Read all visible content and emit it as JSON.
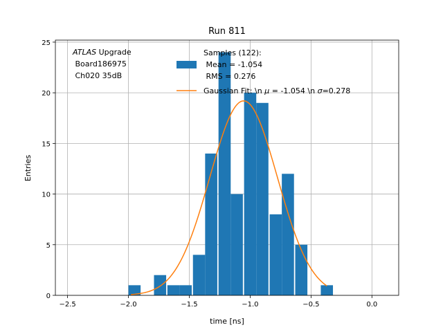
{
  "chart_data": {
    "type": "bar",
    "title": "Run 811",
    "xlabel": "time [ns]",
    "ylabel": "Entries",
    "xlim": [
      -2.6,
      0.22
    ],
    "ylim": [
      0,
      25.2
    ],
    "grid": true,
    "x_ticks": [
      -2.5,
      -2.0,
      -1.5,
      -1.0,
      -0.5,
      0.0
    ],
    "x_tick_labels": [
      "−2.5",
      "−2.0",
      "−1.5",
      "−1.0",
      "−0.5",
      "0.0"
    ],
    "y_ticks": [
      0,
      5,
      10,
      15,
      20,
      25
    ],
    "y_tick_labels": [
      "0",
      "5",
      "10",
      "15",
      "20",
      "25"
    ],
    "bins": {
      "left_edges": [
        -2.0,
        -1.79,
        -1.68,
        -1.58,
        -1.47,
        -1.37,
        -1.26,
        -1.16,
        -1.05,
        -0.95,
        -0.84,
        -0.74,
        -0.63,
        -0.42
      ],
      "width": 0.1,
      "values": [
        1,
        2,
        1,
        1,
        4,
        14,
        24,
        10,
        20,
        19,
        8,
        12,
        5,
        1
      ]
    },
    "series": [
      {
        "name": "Samples (122):\n Mean = -1.054\n RMS = 0.276",
        "kind": "histogram",
        "color": "#1f77b4"
      },
      {
        "name": "Gaussian Fit: \\n $\\mu$ = -1.054 \\n $\\sigma$=0.278",
        "kind": "line",
        "color": "#ff7f0e",
        "mu": -1.054,
        "sigma": 0.278,
        "amplitude": 19.2,
        "x_range": [
          -1.98,
          -0.37
        ]
      }
    ],
    "legend": {
      "placement": "top-right",
      "hist_label_lines": [
        "Samples (122):",
        " Mean = -1.054",
        " RMS = 0.276"
      ],
      "fit_label_prefix": "Gaussian Fit: \\n ",
      "fit_label_mu": "μ",
      "fit_label_mid": " = -1.054 \\n ",
      "fit_label_sigma": "σ",
      "fit_label_suffix": "=0.278"
    },
    "annotation": {
      "line1_italic": "ATLAS",
      "line1_rest": " Upgrade",
      "line2": " Board186975",
      "line3": " Ch020 35dB"
    }
  }
}
